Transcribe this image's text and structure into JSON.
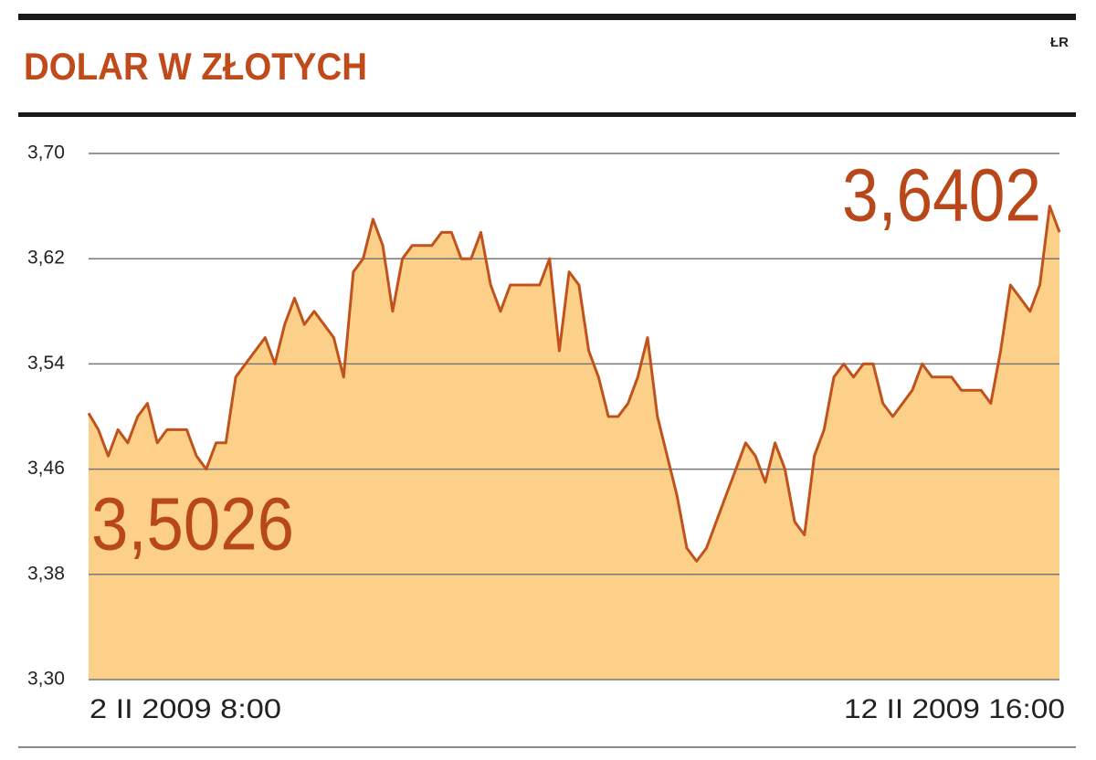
{
  "chart_data": {
    "type": "area",
    "title": "DOLAR W ZŁOTYCH",
    "source": "ŁR",
    "annotations": [
      "3,5026",
      "3,6402"
    ],
    "color": "#c0531c",
    "fill": "#fdd08a",
    "grid": true,
    "categories": [
      "2 II 2009 8:00",
      null,
      null,
      null,
      null,
      null,
      null,
      null,
      null,
      null,
      null,
      null,
      null,
      null,
      null,
      null,
      null,
      null,
      null,
      null,
      null,
      null,
      null,
      null,
      null,
      null,
      null,
      null,
      null,
      null,
      null,
      null,
      null,
      null,
      null,
      null,
      null,
      null,
      null,
      null,
      null,
      null,
      null,
      null,
      null,
      null,
      null,
      null,
      null,
      null,
      null,
      null,
      null,
      null,
      null,
      null,
      null,
      null,
      null,
      null,
      null,
      null,
      null,
      null,
      null,
      null,
      null,
      null,
      null,
      null,
      null,
      null,
      null,
      null,
      null,
      null,
      null,
      null,
      null,
      null,
      null,
      null,
      null,
      null,
      null,
      null,
      null,
      null,
      null,
      null,
      null,
      null,
      null,
      null,
      null,
      null,
      null,
      null,
      null,
      "12 II 2009 16:00"
    ],
    "values": [
      3.5026,
      3.49,
      3.47,
      3.49,
      3.48,
      3.5,
      3.51,
      3.48,
      3.49,
      3.49,
      3.49,
      3.47,
      3.46,
      3.48,
      3.48,
      3.53,
      3.54,
      3.55,
      3.56,
      3.54,
      3.57,
      3.59,
      3.57,
      3.58,
      3.57,
      3.56,
      3.53,
      3.61,
      3.62,
      3.65,
      3.63,
      3.58,
      3.62,
      3.63,
      3.63,
      3.63,
      3.64,
      3.64,
      3.62,
      3.62,
      3.64,
      3.6,
      3.58,
      3.6,
      3.6,
      3.6,
      3.6,
      3.62,
      3.55,
      3.61,
      3.6,
      3.55,
      3.53,
      3.5,
      3.5,
      3.51,
      3.53,
      3.56,
      3.5,
      3.47,
      3.44,
      3.4,
      3.39,
      3.4,
      3.42,
      3.44,
      3.46,
      3.48,
      3.47,
      3.45,
      3.48,
      3.46,
      3.42,
      3.41,
      3.47,
      3.49,
      3.53,
      3.54,
      3.53,
      3.54,
      3.54,
      3.51,
      3.5,
      3.51,
      3.52,
      3.54,
      3.53,
      3.53,
      3.53,
      3.52,
      3.52,
      3.52,
      3.51,
      3.55,
      3.6,
      3.59,
      3.58,
      3.6,
      3.66,
      3.6402
    ],
    "ylim": [
      3.3,
      3.7
    ],
    "yticks": [
      {
        "value": 3.3,
        "label": "3,30"
      },
      {
        "value": 3.38,
        "label": "3,38"
      },
      {
        "value": 3.46,
        "label": "3,46"
      },
      {
        "value": 3.54,
        "label": "3,54"
      },
      {
        "value": 3.62,
        "label": "3,62"
      },
      {
        "value": 3.7,
        "label": "3,70"
      }
    ]
  }
}
